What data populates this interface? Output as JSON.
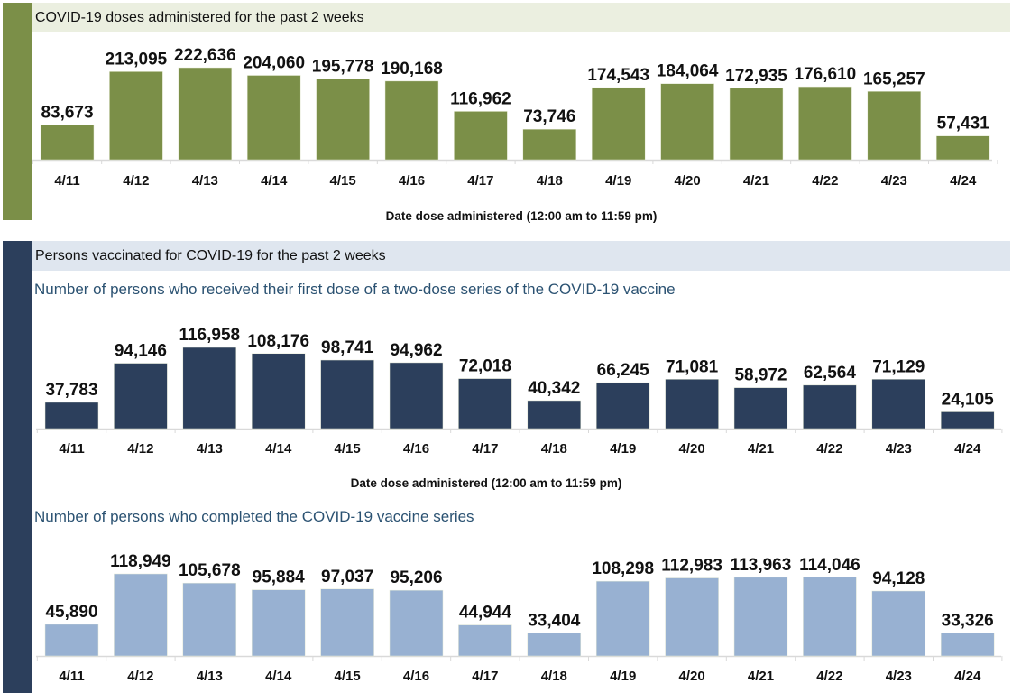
{
  "sections": {
    "doses": {
      "header": "COVID-19 doses administered for the past 2 weeks",
      "accent": "#7b8f48",
      "header_bg": "#ebefe0"
    },
    "persons": {
      "header": "Persons vaccinated for COVID-19 for the past 2 weeks",
      "accent": "#2c3f5c",
      "header_bg": "#dfe6ef"
    }
  },
  "chart_data": [
    {
      "id": "doses",
      "type": "bar",
      "title": "COVID-19 doses administered for the past 2 weeks",
      "xlabel": "Date dose administered (12:00 am to 11:59 pm)",
      "ylabel": "",
      "categories": [
        "4/11",
        "4/12",
        "4/13",
        "4/14",
        "4/15",
        "4/16",
        "4/17",
        "4/18",
        "4/19",
        "4/20",
        "4/21",
        "4/22",
        "4/23",
        "4/24"
      ],
      "values": [
        83673,
        213095,
        222636,
        204060,
        195778,
        190168,
        116962,
        73746,
        174543,
        184064,
        172935,
        176610,
        165257,
        57431
      ],
      "labels": [
        "83,673",
        "213,095",
        "222,636",
        "204,060",
        "195,778",
        "190,168",
        "116,962",
        "73,746",
        "174,543",
        "184,064",
        "172,935",
        "176,610",
        "165,257",
        "57,431"
      ],
      "color": "#7b8f48",
      "ylim": [
        0,
        222636
      ],
      "grid": false,
      "legend": "none"
    },
    {
      "id": "first-dose",
      "type": "bar",
      "title": "Number of persons who received their first dose of a two-dose series of the COVID-19 vaccine",
      "xlabel": "Date dose administered (12:00 am to 11:59 pm)",
      "ylabel": "",
      "categories": [
        "4/11",
        "4/12",
        "4/13",
        "4/14",
        "4/15",
        "4/16",
        "4/17",
        "4/18",
        "4/19",
        "4/20",
        "4/21",
        "4/22",
        "4/23",
        "4/24"
      ],
      "values": [
        37783,
        94146,
        116958,
        108176,
        98741,
        94962,
        72018,
        40342,
        66245,
        71081,
        58972,
        62564,
        71129,
        24105
      ],
      "labels": [
        "37,783",
        "94,146",
        "116,958",
        "108,176",
        "98,741",
        "94,962",
        "72,018",
        "40,342",
        "66,245",
        "71,081",
        "58,972",
        "62,564",
        "71,129",
        "24,105"
      ],
      "color": "#2c3f5c",
      "ylim": [
        0,
        116958
      ],
      "grid": false,
      "legend": "none"
    },
    {
      "id": "completed",
      "type": "bar",
      "title": "Number of persons who completed the COVID-19 vaccine series",
      "xlabel": "",
      "ylabel": "",
      "categories": [
        "4/11",
        "4/12",
        "4/13",
        "4/14",
        "4/15",
        "4/16",
        "4/17",
        "4/18",
        "4/19",
        "4/20",
        "4/21",
        "4/22",
        "4/23",
        "4/24"
      ],
      "values": [
        45890,
        118949,
        105678,
        95884,
        97037,
        95206,
        44944,
        33404,
        108298,
        112983,
        113963,
        114046,
        94128,
        33326
      ],
      "labels": [
        "45,890",
        "118,949",
        "105,678",
        "95,884",
        "97,037",
        "95,206",
        "44,944",
        "33,404",
        "108,298",
        "112,983",
        "113,963",
        "114,046",
        "94,128",
        "33,326"
      ],
      "color": "#98b1d2",
      "ylim": [
        0,
        118949
      ],
      "grid": false,
      "legend": "none"
    }
  ]
}
